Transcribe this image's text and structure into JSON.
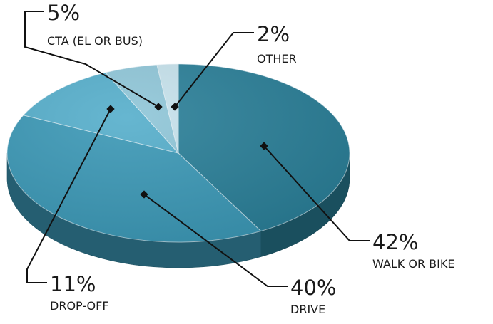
{
  "chart_data": {
    "type": "pie",
    "style": "3d",
    "slices": [
      {
        "name": "WALK OR BIKE",
        "value": 42,
        "label": "42%",
        "color": "#2a7f98"
      },
      {
        "name": "DRIVE",
        "value": 40,
        "label": "40%",
        "color": "#3b98b6"
      },
      {
        "name": "DROP-OFF",
        "value": 11,
        "label": "11%",
        "color": "#55aecb"
      },
      {
        "name": "CTA (EL OR BUS)",
        "value": 5,
        "label": "5%",
        "color": "#8fc6d8"
      },
      {
        "name": "OTHER",
        "value": 2,
        "label": "2%",
        "color": "#c6e2ec"
      }
    ]
  }
}
